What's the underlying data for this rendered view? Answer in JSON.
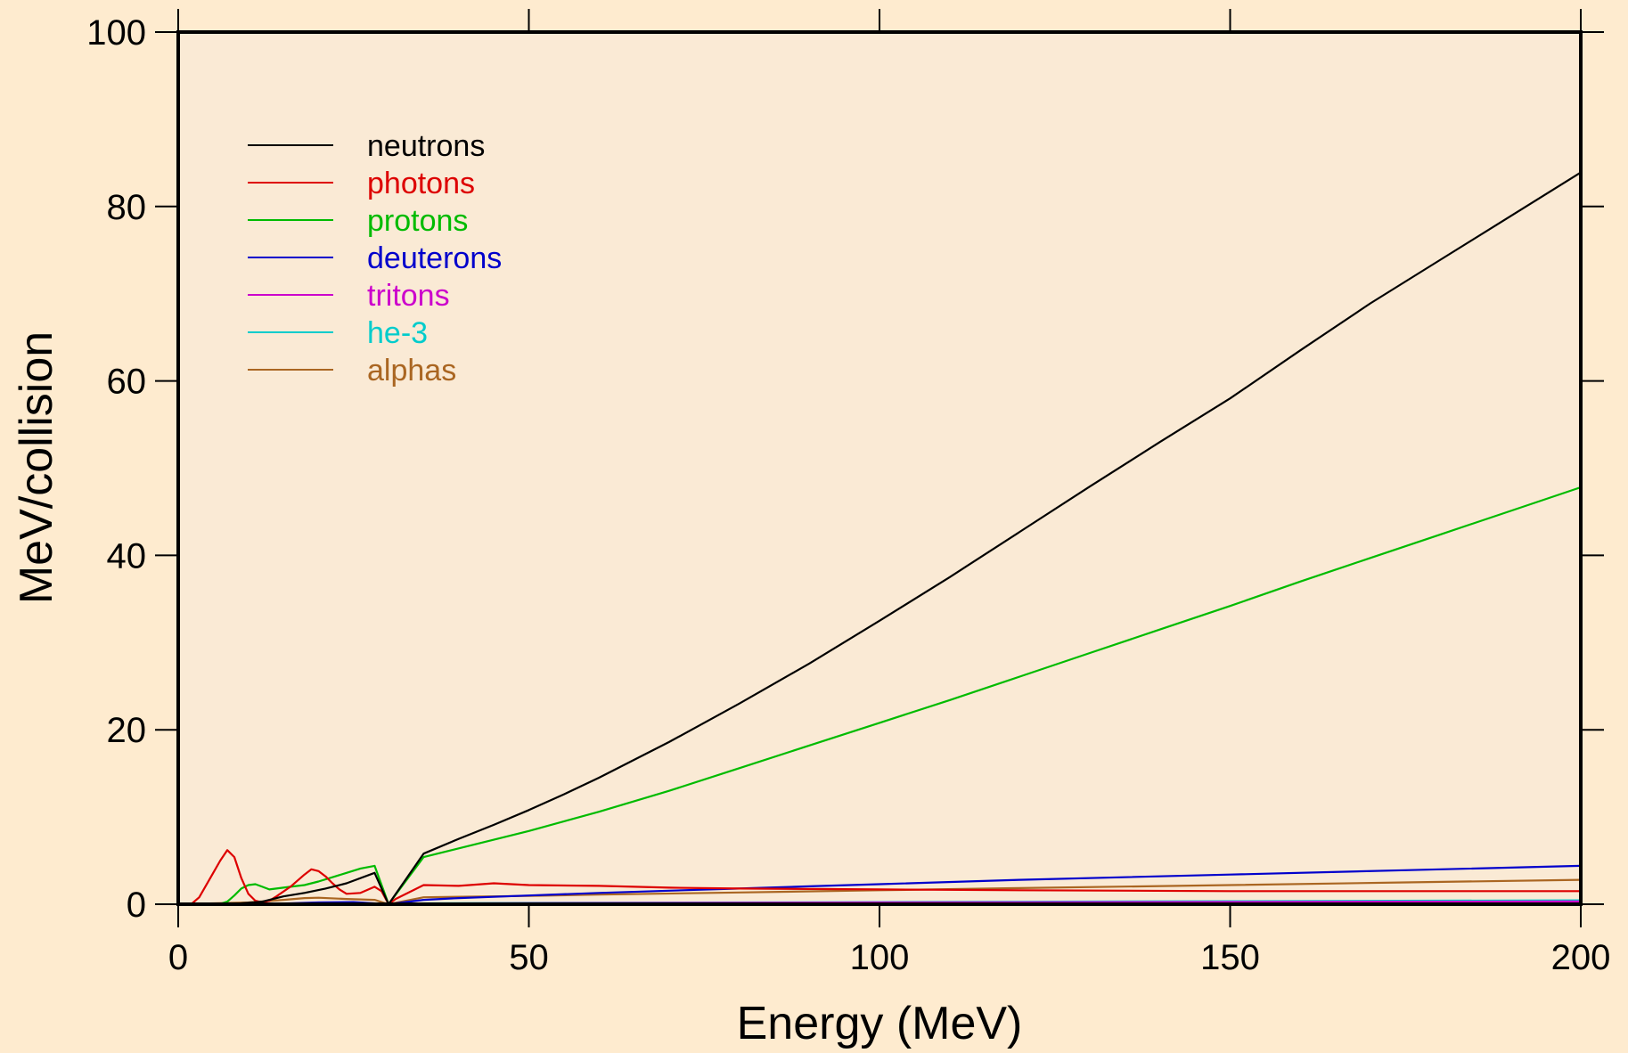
{
  "colors": {
    "page_background": "#FEEBCF",
    "plot_background": "#FAEAD5",
    "axis": "#000000"
  },
  "chart_data": {
    "type": "line",
    "title": "",
    "xlabel": "Energy (MeV)",
    "ylabel": "MeV/collision",
    "xlim": [
      0,
      200
    ],
    "ylim": [
      0,
      100
    ],
    "x_ticks": [
      0,
      50,
      100,
      150,
      200
    ],
    "y_ticks": [
      0,
      20,
      40,
      60,
      80,
      100
    ],
    "grid": false,
    "legend_position": "top-left",
    "series": [
      {
        "name": "neutrons",
        "color": "#000000",
        "points": [
          [
            0,
            0
          ],
          [
            3,
            0.05
          ],
          [
            6,
            0.05
          ],
          [
            9,
            0.1
          ],
          [
            12,
            0.3
          ],
          [
            15,
            0.9
          ],
          [
            18,
            1.3
          ],
          [
            21,
            1.8
          ],
          [
            24,
            2.4
          ],
          [
            28,
            3.6
          ],
          [
            30,
            0
          ],
          [
            35,
            5.8
          ],
          [
            40,
            7.5
          ],
          [
            45,
            9.1
          ],
          [
            50,
            10.8
          ],
          [
            55,
            12.6
          ],
          [
            60,
            14.5
          ],
          [
            70,
            18.6
          ],
          [
            80,
            23.0
          ],
          [
            90,
            27.6
          ],
          [
            100,
            32.5
          ],
          [
            110,
            37.5
          ],
          [
            120,
            42.7
          ],
          [
            130,
            47.9
          ],
          [
            140,
            53.0
          ],
          [
            150,
            58.0
          ],
          [
            160,
            63.5
          ],
          [
            170,
            68.9
          ],
          [
            180,
            73.9
          ],
          [
            190,
            78.9
          ],
          [
            200,
            83.9
          ]
        ]
      },
      {
        "name": "photons",
        "color": "#DD0000",
        "points": [
          [
            0,
            0
          ],
          [
            2,
            0.1
          ],
          [
            3,
            0.8
          ],
          [
            5,
            3.6
          ],
          [
            6,
            5.0
          ],
          [
            7,
            6.2
          ],
          [
            8,
            5.4
          ],
          [
            9,
            3.0
          ],
          [
            10,
            1.2
          ],
          [
            11,
            0.4
          ],
          [
            12,
            0.2
          ],
          [
            13,
            0.4
          ],
          [
            14,
            0.9
          ],
          [
            16,
            2.0
          ],
          [
            18,
            3.4
          ],
          [
            19,
            4.0
          ],
          [
            20,
            3.8
          ],
          [
            21,
            3.2
          ],
          [
            22,
            2.4
          ],
          [
            23,
            1.7
          ],
          [
            24,
            1.2
          ],
          [
            26,
            1.3
          ],
          [
            28,
            2.0
          ],
          [
            29,
            1.5
          ],
          [
            30,
            0
          ],
          [
            31,
            0.6
          ],
          [
            35,
            2.2
          ],
          [
            40,
            2.1
          ],
          [
            45,
            2.4
          ],
          [
            50,
            2.2
          ],
          [
            60,
            2.1
          ],
          [
            70,
            1.9
          ],
          [
            80,
            1.8
          ],
          [
            100,
            1.7
          ],
          [
            120,
            1.6
          ],
          [
            150,
            1.5
          ],
          [
            175,
            1.5
          ],
          [
            200,
            1.5
          ]
        ]
      },
      {
        "name": "protons",
        "color": "#00BB00",
        "points": [
          [
            0,
            0
          ],
          [
            6,
            0.05
          ],
          [
            7,
            0.3
          ],
          [
            8,
            1.0
          ],
          [
            9,
            1.8
          ],
          [
            10,
            2.2
          ],
          [
            11,
            2.3
          ],
          [
            12,
            2.0
          ],
          [
            13,
            1.7
          ],
          [
            14,
            1.8
          ],
          [
            16,
            2.0
          ],
          [
            18,
            2.2
          ],
          [
            20,
            2.6
          ],
          [
            22,
            3.1
          ],
          [
            24,
            3.6
          ],
          [
            26,
            4.1
          ],
          [
            28,
            4.4
          ],
          [
            30,
            0
          ],
          [
            35,
            5.4
          ],
          [
            40,
            6.4
          ],
          [
            45,
            7.4
          ],
          [
            50,
            8.4
          ],
          [
            60,
            10.6
          ],
          [
            70,
            13.0
          ],
          [
            80,
            15.6
          ],
          [
            90,
            18.2
          ],
          [
            100,
            20.8
          ],
          [
            110,
            23.4
          ],
          [
            120,
            26.1
          ],
          [
            130,
            28.8
          ],
          [
            140,
            31.5
          ],
          [
            150,
            34.2
          ],
          [
            160,
            37.0
          ],
          [
            170,
            39.7
          ],
          [
            180,
            42.4
          ],
          [
            190,
            45.1
          ],
          [
            200,
            47.8
          ]
        ]
      },
      {
        "name": "deuterons",
        "color": "#0000CC",
        "points": [
          [
            0,
            0
          ],
          [
            10,
            0.02
          ],
          [
            16,
            0.1
          ],
          [
            20,
            0.2
          ],
          [
            25,
            0.25
          ],
          [
            30,
            0
          ],
          [
            35,
            0.5
          ],
          [
            40,
            0.7
          ],
          [
            50,
            1.0
          ],
          [
            60,
            1.3
          ],
          [
            70,
            1.55
          ],
          [
            80,
            1.8
          ],
          [
            90,
            2.05
          ],
          [
            100,
            2.3
          ],
          [
            120,
            2.8
          ],
          [
            150,
            3.4
          ],
          [
            175,
            3.9
          ],
          [
            200,
            4.4
          ]
        ]
      },
      {
        "name": "tritons",
        "color": "#CC00CC",
        "points": [
          [
            0,
            0
          ],
          [
            16,
            0.03
          ],
          [
            30,
            0
          ],
          [
            35,
            0.08
          ],
          [
            50,
            0.12
          ],
          [
            100,
            0.2
          ],
          [
            150,
            0.26
          ],
          [
            200,
            0.32
          ]
        ]
      },
      {
        "name": "he-3",
        "color": "#00CCCC",
        "points": [
          [
            0,
            0
          ],
          [
            16,
            0.05
          ],
          [
            30,
            0
          ],
          [
            35,
            0.1
          ],
          [
            50,
            0.15
          ],
          [
            100,
            0.25
          ],
          [
            150,
            0.35
          ],
          [
            200,
            0.45
          ]
        ]
      },
      {
        "name": "alphas",
        "color": "#AA6622",
        "points": [
          [
            0,
            0
          ],
          [
            10,
            0.2
          ],
          [
            15,
            0.5
          ],
          [
            18,
            0.7
          ],
          [
            20,
            0.75
          ],
          [
            24,
            0.6
          ],
          [
            28,
            0.5
          ],
          [
            30,
            0
          ],
          [
            35,
            0.8
          ],
          [
            50,
            0.95
          ],
          [
            60,
            1.1
          ],
          [
            80,
            1.35
          ],
          [
            100,
            1.6
          ],
          [
            120,
            1.85
          ],
          [
            150,
            2.2
          ],
          [
            175,
            2.5
          ],
          [
            200,
            2.8
          ]
        ]
      }
    ]
  }
}
